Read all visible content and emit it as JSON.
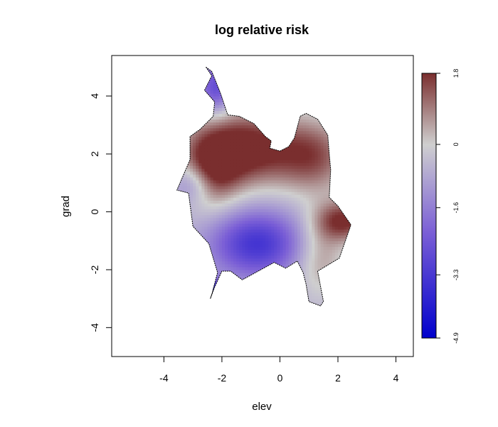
{
  "chart_data": {
    "type": "heatmap",
    "title": "log relative risk",
    "xlabel": "elev",
    "ylabel": "grad",
    "xlim": [
      -5.8,
      4.6
    ],
    "ylim": [
      -5.0,
      5.4
    ],
    "x_ticks": [
      -4,
      -2,
      0,
      2,
      4
    ],
    "y_ticks": [
      -4,
      -2,
      0,
      2,
      4
    ],
    "colorbar": {
      "zlim": [
        -4.9,
        1.8
      ],
      "ticks": [
        1.8,
        0,
        -1.6,
        -3.3,
        -4.9
      ],
      "colors": {
        "low": "#0000cc",
        "mid_low": "#7b5fd6",
        "mid": "#cfcfcf",
        "high": "#7a2e2e"
      }
    },
    "grid": false,
    "legend": "none",
    "region_outline": [
      [
        -2.55,
        5.0
      ],
      [
        -2.35,
        4.85
      ],
      [
        -2.05,
        4.1
      ],
      [
        -1.8,
        3.35
      ],
      [
        -1.4,
        3.3
      ],
      [
        -0.9,
        3.05
      ],
      [
        -0.5,
        2.6
      ],
      [
        -0.3,
        2.45
      ],
      [
        -0.35,
        2.2
      ],
      [
        0.0,
        2.1
      ],
      [
        0.3,
        2.25
      ],
      [
        0.5,
        2.55
      ],
      [
        0.7,
        3.3
      ],
      [
        0.9,
        3.4
      ],
      [
        1.3,
        3.2
      ],
      [
        1.65,
        2.65
      ],
      [
        1.7,
        2.0
      ],
      [
        1.75,
        1.45
      ],
      [
        1.7,
        0.5
      ],
      [
        2.0,
        0.2
      ],
      [
        2.45,
        -0.45
      ],
      [
        2.05,
        -1.6
      ],
      [
        1.3,
        -2.05
      ],
      [
        1.5,
        -3.1
      ],
      [
        1.4,
        -3.25
      ],
      [
        1.0,
        -3.1
      ],
      [
        0.9,
        -2.5
      ],
      [
        0.8,
        -2.1
      ],
      [
        0.6,
        -1.7
      ],
      [
        0.2,
        -1.95
      ],
      [
        -0.2,
        -1.75
      ],
      [
        -1.3,
        -2.35
      ],
      [
        -1.7,
        -2.05
      ],
      [
        -2.0,
        -2.05
      ],
      [
        -2.25,
        -2.6
      ],
      [
        -2.4,
        -3.0
      ],
      [
        -2.35,
        -2.85
      ],
      [
        -2.15,
        -2.1
      ],
      [
        -2.45,
        -1.1
      ],
      [
        -3.0,
        -0.5
      ],
      [
        -3.15,
        0.65
      ],
      [
        -3.55,
        0.75
      ],
      [
        -3.1,
        1.8
      ],
      [
        -3.1,
        2.6
      ],
      [
        -2.75,
        2.85
      ],
      [
        -2.3,
        3.3
      ],
      [
        -2.25,
        3.8
      ],
      [
        -2.6,
        4.2
      ],
      [
        -2.35,
        4.7
      ]
    ],
    "risk_components": [
      {
        "x": -1.2,
        "y": 2.2,
        "value": 2.8,
        "sx": 1.3,
        "sy": 0.9
      },
      {
        "x": -2.4,
        "y": 1.4,
        "value": 2.0,
        "sx": 0.7,
        "sy": 0.9
      },
      {
        "x": 1.2,
        "y": 1.9,
        "value": 1.8,
        "sx": 0.9,
        "sy": 0.9
      },
      {
        "x": 2.2,
        "y": -0.3,
        "value": 2.4,
        "sx": 0.7,
        "sy": 0.5
      },
      {
        "x": 1.4,
        "y": -1.6,
        "value": 1.2,
        "sx": 0.6,
        "sy": 0.9
      },
      {
        "x": -0.8,
        "y": -1.1,
        "value": -2.8,
        "sx": 1.1,
        "sy": 0.8
      },
      {
        "x": -2.2,
        "y": 4.3,
        "value": -2.2,
        "sx": 0.4,
        "sy": 0.6
      },
      {
        "x": -3.0,
        "y": 1.0,
        "value": -1.5,
        "sx": 0.5,
        "sy": 0.5
      },
      {
        "x": -2.3,
        "y": -2.8,
        "value": -4.5,
        "sx": 0.3,
        "sy": 0.3
      }
    ],
    "base_value": -0.6
  }
}
